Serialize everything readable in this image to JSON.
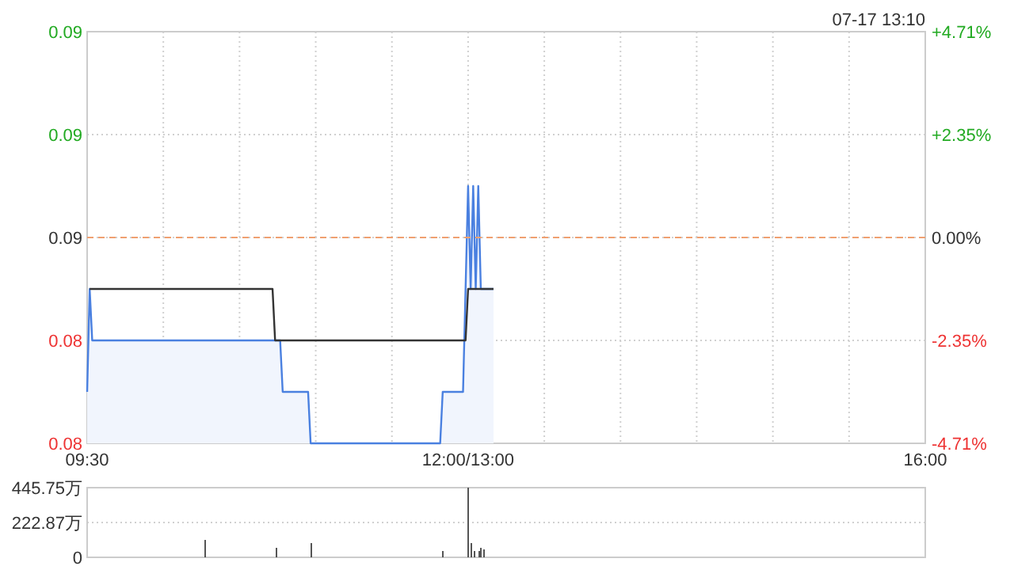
{
  "chart_data": [
    {
      "type": "line",
      "annotations": [
        "07-17 13:10"
      ],
      "categories": [
        "09:30",
        null,
        null,
        null,
        null,
        null,
        null,
        null,
        null,
        null,
        null,
        null,
        null,
        null,
        null,
        null,
        null,
        null,
        null,
        null,
        null,
        null,
        null,
        null,
        null,
        null,
        null,
        null,
        null,
        null,
        null,
        null,
        null,
        null,
        null,
        null,
        null,
        null,
        null,
        null,
        null,
        null,
        null,
        null,
        null,
        null,
        null,
        null,
        null,
        null,
        null,
        null,
        null,
        null,
        null,
        null,
        null,
        null,
        null,
        null,
        null,
        null,
        null,
        null,
        null,
        null,
        null,
        null,
        null,
        null,
        null,
        null,
        null,
        null,
        null,
        null,
        null,
        null,
        null,
        null,
        null,
        null,
        null,
        null,
        null,
        null,
        null,
        null,
        null,
        null,
        null,
        null,
        null,
        null,
        null,
        null,
        null,
        null,
        null,
        null,
        null,
        null,
        null,
        null,
        null,
        null,
        null,
        null,
        null,
        null,
        null,
        null,
        null,
        null,
        null,
        null,
        null,
        null,
        null,
        null,
        null,
        null,
        null,
        null,
        null,
        null,
        null,
        null,
        null,
        null,
        null,
        null,
        null,
        null,
        null,
        null,
        null,
        null,
        null,
        null,
        null,
        null,
        null,
        null,
        null,
        null,
        null,
        null,
        null,
        null,
        "12:00/13:00",
        null,
        null,
        null,
        null,
        null,
        null,
        null,
        null,
        null,
        null,
        null,
        null,
        null,
        null,
        null,
        null,
        null,
        null,
        null,
        null,
        null,
        null,
        null,
        null,
        null,
        null,
        null,
        null,
        null,
        null,
        null,
        null,
        null,
        null,
        null,
        null,
        null,
        null,
        null,
        null,
        null,
        null,
        null,
        null,
        null,
        null,
        null,
        null,
        null,
        null,
        null,
        null,
        null,
        null,
        null,
        null,
        null,
        null,
        null,
        null,
        null,
        null,
        null,
        null,
        null,
        null,
        null,
        null,
        null,
        null,
        null,
        null,
        null,
        null,
        null,
        null,
        null,
        null,
        null,
        null,
        null,
        null,
        null,
        null,
        null,
        null,
        null,
        null,
        null,
        null,
        null,
        null,
        null,
        null,
        null,
        null,
        null,
        null,
        null,
        null,
        null,
        null,
        null,
        null,
        null,
        null,
        null,
        null,
        null,
        null,
        null,
        null,
        null,
        null,
        null,
        null,
        null,
        null,
        null,
        null,
        null,
        null,
        null,
        null,
        null,
        null,
        null,
        null,
        null,
        null,
        null,
        null,
        null,
        null,
        null,
        null,
        null,
        null,
        null,
        null,
        null,
        null,
        null,
        null,
        null,
        null,
        null,
        null,
        null,
        null,
        null,
        null,
        null,
        null,
        null,
        null,
        null,
        null,
        null,
        null,
        null,
        null,
        null,
        null,
        null,
        null,
        null,
        null,
        null,
        null,
        null,
        null,
        null,
        null,
        null,
        null,
        null,
        null,
        null,
        "16:00"
      ],
      "ylim": [
        0.081,
        0.089
      ],
      "yticks": [
        {
          "value": 0.081,
          "label": "0.08"
        },
        {
          "value": 0.083,
          "label": "0.08"
        },
        {
          "value": 0.085,
          "label": "0.09"
        },
        {
          "value": 0.087,
          "label": "0.09"
        },
        {
          "value": 0.089,
          "label": "0.09"
        }
      ],
      "y2lim": [
        -4.71,
        4.71
      ],
      "y2ticks": [
        {
          "value": -4.71,
          "label": "-4.71%"
        },
        {
          "value": -2.35,
          "label": "-2.35%"
        },
        {
          "value": 0,
          "label": "0.00%"
        },
        {
          "value": 2.35,
          "label": "+2.35%"
        },
        {
          "value": 4.71,
          "label": "+4.71%"
        }
      ],
      "grid": true,
      "ref_lines": [
        {
          "axis": "y",
          "value": 0.085,
          "label": null,
          "color": "#f0a070",
          "line_style": "dashed"
        }
      ],
      "series": [
        {
          "type": "area",
          "color": "#4a80e0",
          "values": [
            0.082,
            0.084,
            0.083,
            0.083,
            0.083,
            0.083,
            0.083,
            0.083,
            0.083,
            0.083,
            0.083,
            0.083,
            0.083,
            0.083,
            0.083,
            0.083,
            0.083,
            0.083,
            0.083,
            0.083,
            0.083,
            0.083,
            0.083,
            0.083,
            0.083,
            0.083,
            0.083,
            0.083,
            0.083,
            0.083,
            0.083,
            0.083,
            0.083,
            0.083,
            0.083,
            0.083,
            0.083,
            0.083,
            0.083,
            0.083,
            0.083,
            0.083,
            0.083,
            0.083,
            0.083,
            0.083,
            0.083,
            0.083,
            0.083,
            0.083,
            0.083,
            0.083,
            0.083,
            0.083,
            0.083,
            0.083,
            0.083,
            0.083,
            0.083,
            0.083,
            0.083,
            0.083,
            0.083,
            0.083,
            0.083,
            0.083,
            0.083,
            0.083,
            0.083,
            0.083,
            0.083,
            0.083,
            0.083,
            0.083,
            0.083,
            0.083,
            0.083,
            0.082,
            0.082,
            0.082,
            0.082,
            0.082,
            0.082,
            0.082,
            0.082,
            0.082,
            0.082,
            0.082,
            0.081,
            0.081,
            0.081,
            0.081,
            0.081,
            0.081,
            0.081,
            0.081,
            0.081,
            0.081,
            0.081,
            0.081,
            0.081,
            0.081,
            0.081,
            0.081,
            0.081,
            0.081,
            0.081,
            0.081,
            0.081,
            0.081,
            0.081,
            0.081,
            0.081,
            0.081,
            0.081,
            0.081,
            0.081,
            0.081,
            0.081,
            0.081,
            0.081,
            0.081,
            0.081,
            0.081,
            0.081,
            0.081,
            0.081,
            0.081,
            0.081,
            0.081,
            0.081,
            0.081,
            0.081,
            0.081,
            0.081,
            0.081,
            0.081,
            0.081,
            0.081,
            0.081,
            0.082,
            0.082,
            0.082,
            0.082,
            0.082,
            0.082,
            0.082,
            0.082,
            0.082,
            0.084,
            0.086,
            0.084,
            0.086,
            0.084,
            0.086,
            0.084,
            0.084,
            0.084,
            0.084,
            0.084,
            0.084,
            null,
            null,
            null,
            null,
            null,
            null,
            null,
            null,
            null,
            null,
            null,
            null,
            null,
            null,
            null,
            null,
            null,
            null,
            null,
            null,
            null,
            null,
            null,
            null,
            null,
            null,
            null,
            null,
            null,
            null,
            null,
            null,
            null,
            null,
            null,
            null,
            null,
            null,
            null,
            null,
            null,
            null,
            null,
            null,
            null,
            null,
            null,
            null,
            null,
            null,
            null,
            null,
            null,
            null,
            null,
            null,
            null,
            null,
            null,
            null,
            null,
            null,
            null,
            null,
            null,
            null,
            null,
            null,
            null,
            null,
            null,
            null,
            null,
            null,
            null,
            null,
            null,
            null,
            null,
            null,
            null,
            null,
            null,
            null,
            null,
            null,
            null,
            null,
            null,
            null,
            null,
            null,
            null,
            null,
            null,
            null,
            null,
            null,
            null,
            null,
            null,
            null,
            null,
            null,
            null,
            null,
            null,
            null,
            null,
            null,
            null,
            null,
            null,
            null,
            null,
            null,
            null,
            null,
            null,
            null,
            null,
            null,
            null,
            null,
            null,
            null,
            null,
            null,
            null,
            null,
            null,
            null,
            null,
            null,
            null,
            null,
            null,
            null,
            null,
            null,
            null,
            null,
            null,
            null,
            null,
            null,
            null,
            null,
            null,
            null,
            null,
            null,
            null,
            null,
            null,
            null,
            null,
            null,
            null,
            null,
            null,
            null,
            null,
            null,
            null,
            null,
            null,
            null,
            null,
            null
          ]
        },
        {
          "color": "#333333",
          "values": [
            null,
            0.084,
            0.084,
            0.084,
            0.084,
            0.084,
            0.084,
            0.084,
            0.084,
            0.084,
            0.084,
            0.084,
            0.084,
            0.084,
            0.084,
            0.084,
            0.084,
            0.084,
            0.084,
            0.084,
            0.084,
            0.084,
            0.084,
            0.084,
            0.084,
            0.084,
            0.084,
            0.084,
            0.084,
            0.084,
            0.084,
            0.084,
            0.084,
            0.084,
            0.084,
            0.084,
            0.084,
            0.084,
            0.084,
            0.084,
            0.084,
            0.084,
            0.084,
            0.084,
            0.084,
            0.084,
            0.084,
            0.084,
            0.084,
            0.084,
            0.084,
            0.084,
            0.084,
            0.084,
            0.084,
            0.084,
            0.084,
            0.084,
            0.084,
            0.084,
            0.084,
            0.084,
            0.084,
            0.084,
            0.084,
            0.084,
            0.084,
            0.084,
            0.084,
            0.084,
            0.084,
            0.084,
            0.084,
            0.084,
            0.083,
            0.083,
            0.083,
            0.083,
            0.083,
            0.083,
            0.083,
            0.083,
            0.083,
            0.083,
            0.083,
            0.083,
            0.083,
            0.083,
            0.083,
            0.083,
            0.083,
            0.083,
            0.083,
            0.083,
            0.083,
            0.083,
            0.083,
            0.083,
            0.083,
            0.083,
            0.083,
            0.083,
            0.083,
            0.083,
            0.083,
            0.083,
            0.083,
            0.083,
            0.083,
            0.083,
            0.083,
            0.083,
            0.083,
            0.083,
            0.083,
            0.083,
            0.083,
            0.083,
            0.083,
            0.083,
            0.083,
            0.083,
            0.083,
            0.083,
            0.083,
            0.083,
            0.083,
            0.083,
            0.083,
            0.083,
            0.083,
            0.083,
            0.083,
            0.083,
            0.083,
            0.083,
            0.083,
            0.083,
            0.083,
            0.083,
            0.083,
            0.083,
            0.083,
            0.083,
            0.083,
            0.083,
            0.083,
            0.083,
            0.083,
            0.083,
            0.084,
            0.084,
            0.084,
            0.084,
            0.084,
            0.084,
            0.084,
            0.084,
            0.084,
            0.084,
            0.084,
            null,
            null,
            null,
            null,
            null,
            null,
            null,
            null,
            null,
            null,
            null,
            null,
            null,
            null,
            null,
            null,
            null,
            null,
            null,
            null,
            null,
            null,
            null,
            null,
            null,
            null,
            null,
            null,
            null,
            null,
            null,
            null,
            null,
            null,
            null,
            null,
            null,
            null,
            null,
            null,
            null,
            null,
            null,
            null,
            null,
            null,
            null,
            null,
            null,
            null,
            null,
            null,
            null,
            null,
            null,
            null,
            null,
            null,
            null,
            null,
            null,
            null,
            null,
            null,
            null,
            null,
            null,
            null,
            null,
            null,
            null,
            null,
            null,
            null,
            null,
            null,
            null,
            null,
            null,
            null,
            null,
            null,
            null,
            null,
            null,
            null,
            null,
            null,
            null,
            null,
            null,
            null,
            null,
            null,
            null,
            null,
            null,
            null,
            null,
            null,
            null,
            null,
            null,
            null,
            null,
            null,
            null,
            null,
            null,
            null,
            null,
            null,
            null,
            null,
            null,
            null,
            null,
            null,
            null,
            null,
            null,
            null,
            null,
            null,
            null,
            null,
            null,
            null,
            null,
            null,
            null,
            null,
            null,
            null,
            null,
            null,
            null,
            null,
            null,
            null,
            null,
            null,
            null,
            null,
            null,
            null,
            null,
            null,
            null,
            null,
            null,
            null,
            null,
            null,
            null,
            null,
            null,
            null,
            null,
            null,
            null,
            null,
            null,
            null,
            null,
            null,
            null,
            null,
            null,
            null
          ]
        }
      ]
    },
    {
      "type": "bar",
      "categories": [
        null,
        null,
        null,
        null,
        null,
        null,
        null,
        null,
        null,
        null,
        null,
        null,
        null,
        null,
        null,
        null,
        null,
        null,
        null,
        null,
        null,
        null,
        null,
        null,
        null,
        null,
        null,
        null,
        null,
        null,
        null,
        null,
        null,
        null,
        null,
        null,
        null,
        null,
        null,
        null,
        null,
        null,
        null,
        null,
        null,
        null,
        null,
        null,
        null,
        null,
        null,
        null,
        null,
        null,
        null,
        null,
        null,
        null,
        null,
        null,
        null,
        null,
        null,
        null,
        null,
        null,
        null,
        null,
        null,
        null,
        null,
        null,
        null,
        null,
        null,
        null,
        null,
        null,
        null,
        null,
        null,
        null,
        null,
        null,
        null,
        null,
        null,
        null,
        null,
        null,
        null,
        null,
        null,
        null,
        null,
        null,
        null,
        null,
        null,
        null,
        null,
        null,
        null,
        null,
        null,
        null,
        null,
        null,
        null,
        null,
        null,
        null,
        null,
        null,
        null,
        null,
        null,
        null,
        null,
        null,
        null,
        null,
        null,
        null,
        null,
        null,
        null,
        null,
        null,
        null,
        null,
        null,
        null,
        null,
        null,
        null,
        null,
        null,
        null,
        null,
        null,
        null,
        null,
        null,
        null,
        null,
        null,
        null,
        null,
        null,
        null,
        null,
        null,
        null,
        null,
        null,
        null,
        null,
        null,
        null,
        null,
        null,
        null,
        null,
        null,
        null,
        null,
        null,
        null,
        null,
        null,
        null,
        null,
        null,
        null,
        null,
        null,
        null,
        null,
        null,
        null,
        null,
        null,
        null,
        null,
        null,
        null,
        null,
        null,
        null,
        null,
        null,
        null,
        null,
        null,
        null,
        null,
        null,
        null,
        null,
        null,
        null,
        null,
        null,
        null,
        null,
        null,
        null,
        null,
        null,
        null,
        null,
        null,
        null,
        null,
        null,
        null,
        null,
        null,
        null,
        null,
        null,
        null,
        null,
        null,
        null,
        null,
        null,
        null,
        null,
        null,
        null,
        null,
        null,
        null,
        null,
        null,
        null,
        null,
        null,
        null,
        null,
        null,
        null,
        null,
        null,
        null,
        null,
        null,
        null,
        null,
        null,
        null,
        null,
        null,
        null,
        null,
        null,
        null,
        null,
        null,
        null,
        null,
        null,
        null,
        null,
        null,
        null,
        null,
        null,
        null,
        null,
        null,
        null,
        null,
        null,
        null,
        null,
        null,
        null,
        null,
        null,
        null,
        null,
        null,
        null,
        null,
        null,
        null,
        null,
        null,
        null,
        null,
        null,
        null,
        null,
        null,
        null,
        null,
        null,
        null,
        null,
        null,
        null,
        null,
        null,
        null,
        null,
        null,
        null,
        null,
        null,
        null,
        null,
        null,
        null,
        null,
        null,
        null,
        null,
        null,
        null,
        null,
        null,
        null,
        null,
        null,
        null,
        null,
        null,
        null
      ],
      "ylim": [
        0,
        445.75
      ],
      "yticks": [
        {
          "value": 0,
          "label": "0"
        },
        {
          "value": 222.87,
          "label": "222.87万"
        },
        {
          "value": 445.75,
          "label": "445.75万"
        }
      ],
      "tick_labels": "y",
      "grid": "y",
      "series": [
        {
          "color": "#555555",
          "values": [
            0,
            0,
            0,
            0,
            0,
            0,
            0,
            0,
            0,
            0,
            0,
            0,
            0,
            0,
            0,
            0,
            0,
            0,
            0,
            0,
            0,
            0,
            0,
            0,
            0,
            0,
            0,
            0,
            0,
            0,
            0,
            0,
            0,
            0,
            0,
            0,
            0,
            0,
            0,
            0,
            0,
            0,
            0,
            0,
            0,
            0,
            110,
            0,
            0,
            0,
            0,
            0,
            0,
            0,
            0,
            0,
            0,
            0,
            0,
            0,
            0,
            0,
            0,
            0,
            0,
            0,
            0,
            0,
            0,
            0,
            0,
            0,
            0,
            0,
            60,
            0,
            0,
            0,
            0,
            0,
            0,
            0,
            0,
            0,
            0,
            0,
            0,
            0,
            90,
            0,
            0,
            0,
            0,
            0,
            0,
            0,
            0,
            0,
            0,
            0,
            0,
            0,
            0,
            0,
            0,
            0,
            0,
            0,
            0,
            0,
            0,
            0,
            0,
            0,
            0,
            0,
            0,
            0,
            0,
            0,
            0,
            0,
            0,
            0,
            0,
            0,
            0,
            0,
            0,
            0,
            0,
            0,
            0,
            0,
            0,
            0,
            0,
            0,
            0,
            0,
            40,
            0,
            0,
            0,
            0,
            0,
            0,
            0,
            0,
            0,
            445.75,
            90,
            40,
            0,
            40,
            60,
            50,
            0,
            0,
            0,
            0,
            null,
            null,
            null,
            null,
            null,
            null,
            null,
            null,
            null,
            null,
            null,
            null,
            null,
            null,
            null,
            null,
            null,
            null,
            null,
            null,
            null,
            null,
            null,
            null,
            null,
            null,
            null,
            null,
            null,
            null,
            null,
            null,
            null,
            null,
            null,
            null,
            null,
            null,
            null,
            null,
            null,
            null,
            null,
            null,
            null,
            null,
            null,
            null,
            null,
            null,
            null,
            null,
            null,
            null,
            null,
            null,
            null,
            null,
            null,
            null,
            null,
            null,
            null,
            null,
            null,
            null,
            null,
            null,
            null,
            null,
            null,
            null,
            null,
            null,
            null,
            null,
            null,
            null,
            null,
            null,
            null,
            null,
            null,
            null,
            null,
            null,
            null,
            null,
            null,
            null,
            null,
            null,
            null,
            null,
            null,
            null,
            null,
            null,
            null,
            null,
            null,
            null,
            null,
            null,
            null,
            null,
            null,
            null,
            null,
            null,
            null,
            null,
            null,
            null,
            null,
            null,
            null,
            null,
            null,
            null,
            null,
            null,
            null,
            null,
            null,
            null,
            null,
            null,
            null,
            null,
            null,
            null,
            null,
            null,
            null,
            null,
            null,
            null,
            null,
            null,
            null,
            null,
            null,
            null,
            null,
            null,
            null,
            null,
            null,
            null,
            null,
            null,
            null,
            null,
            null,
            null,
            null,
            null,
            null,
            null,
            null,
            null,
            null,
            null,
            null,
            null,
            null,
            null,
            null,
            null
          ]
        }
      ]
    }
  ]
}
